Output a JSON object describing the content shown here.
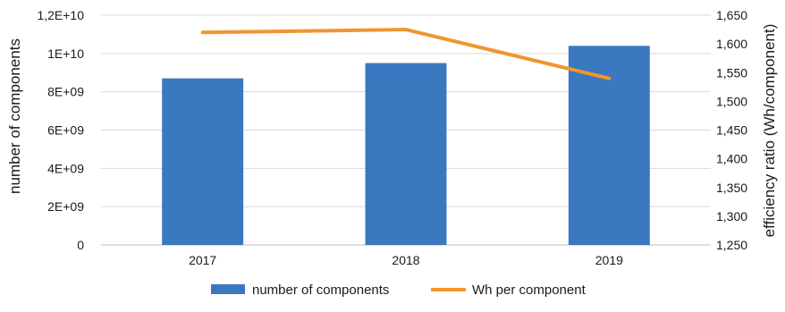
{
  "chart_data": {
    "type": "bar",
    "categories": [
      "2017",
      "2018",
      "2019"
    ],
    "series": [
      {
        "name": "number of components",
        "type": "bar",
        "axis": "left",
        "color": "#3a78c0",
        "values": [
          8700000000,
          9500000000,
          10400000000
        ]
      },
      {
        "name": "Wh per component",
        "type": "line",
        "axis": "right",
        "color": "#f0952f",
        "values": [
          1620,
          1625,
          1540
        ]
      }
    ],
    "y_left": {
      "label": "number of components",
      "min": 0,
      "max": 12000000000,
      "ticks": [
        {
          "value": 0,
          "label": "0"
        },
        {
          "value": 2000000000,
          "label": "2E+09"
        },
        {
          "value": 4000000000,
          "label": "4E+09"
        },
        {
          "value": 6000000000,
          "label": "6E+09"
        },
        {
          "value": 8000000000,
          "label": "8E+09"
        },
        {
          "value": 10000000000,
          "label": "1E+10"
        },
        {
          "value": 12000000000,
          "label": "1,2E+10"
        }
      ]
    },
    "y_right": {
      "label": "efficiency ratio (Wh/component)",
      "min": 1250,
      "max": 1650,
      "ticks": [
        {
          "value": 1250,
          "label": "1,250"
        },
        {
          "value": 1300,
          "label": "1,300"
        },
        {
          "value": 1350,
          "label": "1,350"
        },
        {
          "value": 1400,
          "label": "1,400"
        },
        {
          "value": 1450,
          "label": "1,450"
        },
        {
          "value": 1500,
          "label": "1,500"
        },
        {
          "value": 1550,
          "label": "1,550"
        },
        {
          "value": 1600,
          "label": "1,600"
        },
        {
          "value": 1650,
          "label": "1,650"
        }
      ]
    },
    "grid": true,
    "legend_position": "bottom"
  }
}
